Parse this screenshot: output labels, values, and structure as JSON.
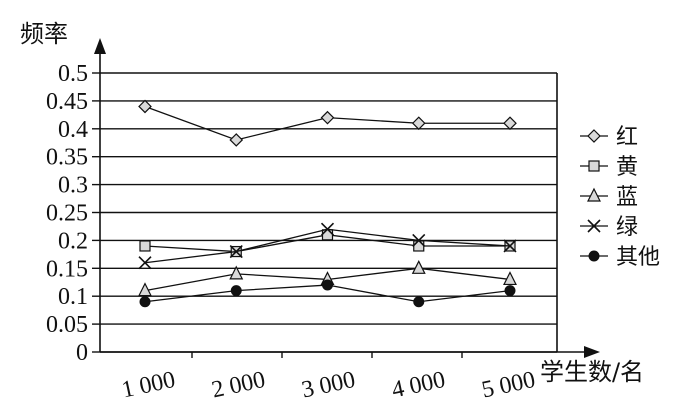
{
  "chart_data": {
    "type": "line",
    "title": "",
    "ylabel": "频率",
    "xlabel": "学生数/名",
    "x": [
      1000,
      2000,
      3000,
      4000,
      5000
    ],
    "x_tick_labels": [
      "1 000",
      "2 000",
      "3 000",
      "4 000",
      "5 000"
    ],
    "y_tick_labels": [
      "0",
      "0.05",
      "0.1",
      "0.15",
      "0.2",
      "0.25",
      "0.3",
      "0.35",
      "0.4",
      "0.45",
      "0.5"
    ],
    "ylim": [
      0,
      0.5
    ],
    "grid": "horizontal",
    "legend_position": "right",
    "series": [
      {
        "name": "红",
        "marker": "diamond",
        "values": [
          0.44,
          0.38,
          0.42,
          0.41,
          0.41
        ]
      },
      {
        "name": "黄",
        "marker": "square",
        "values": [
          0.19,
          0.18,
          0.21,
          0.19,
          0.19
        ]
      },
      {
        "name": "蓝",
        "marker": "triangle",
        "values": [
          0.11,
          0.14,
          0.13,
          0.15,
          0.13
        ]
      },
      {
        "name": "绿",
        "marker": "x",
        "values": [
          0.16,
          0.18,
          0.22,
          0.2,
          0.19
        ]
      },
      {
        "name": "其他",
        "marker": "dot",
        "values": [
          0.09,
          0.11,
          0.12,
          0.09,
          0.11
        ]
      }
    ]
  }
}
